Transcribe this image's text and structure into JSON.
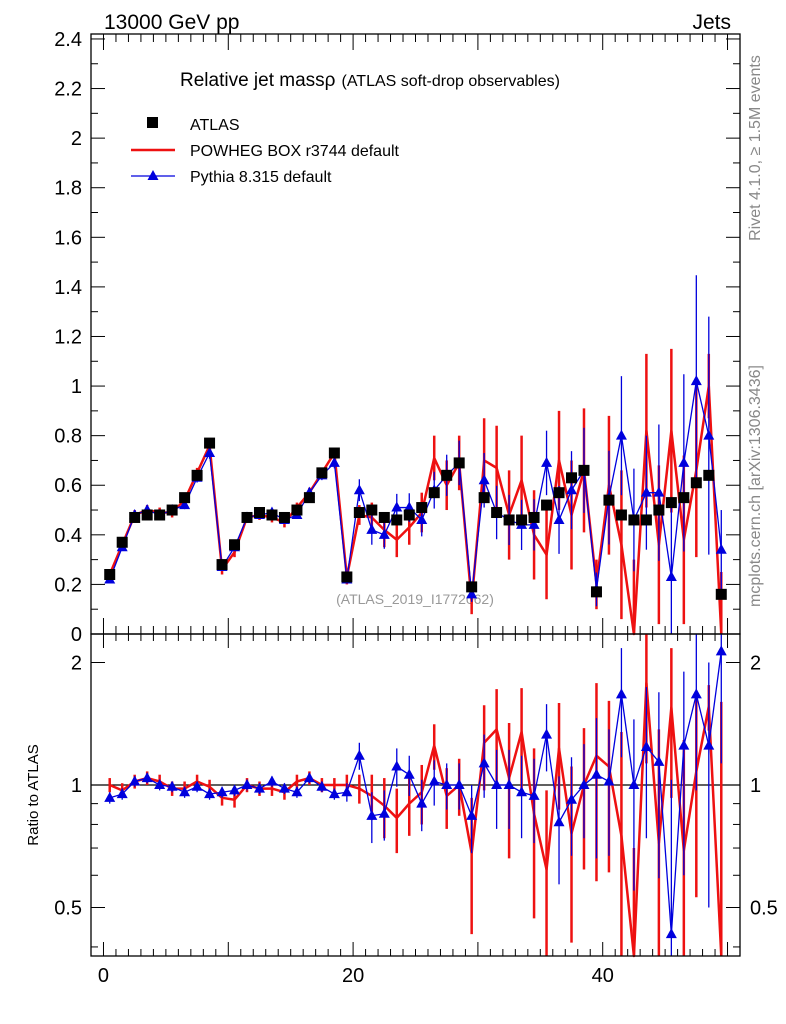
{
  "header": {
    "left": "13000 GeV pp",
    "right": "Jets"
  },
  "side": {
    "rivet": "Rivet 4.1.0, ≥ 1.5M events",
    "source": "mcplots.cern.ch [arXiv:1306.3436]"
  },
  "colors": {
    "data": "#000000",
    "powheg": "#ee1111",
    "pythia": "#0000dd",
    "watermark": "#999999"
  },
  "chart_data": [
    {
      "type": "line",
      "title": "Relative jet massρ",
      "subtitle": "(ATLAS soft-drop observables)",
      "watermark": "(ATLAS_2019_I1772062)",
      "xlabel": "",
      "ylabel": "",
      "xlim": [
        -1,
        51
      ],
      "ylim": [
        0,
        2.42
      ],
      "yticks": [
        "0",
        "0.2",
        "0.4",
        "0.6",
        "0.8",
        "1",
        "1.2",
        "1.4",
        "1.6",
        "1.8",
        "2",
        "2.2",
        "2.4"
      ],
      "legend_position": "top-left",
      "x": [
        0.5,
        1.5,
        2.5,
        3.5,
        4.5,
        5.5,
        6.5,
        7.5,
        8.5,
        9.5,
        10.5,
        11.5,
        12.5,
        13.5,
        14.5,
        15.5,
        16.5,
        17.5,
        18.5,
        19.5,
        20.5,
        21.5,
        22.5,
        23.5,
        24.5,
        25.5,
        26.5,
        27.5,
        28.5,
        29.5,
        30.5,
        31.5,
        32.5,
        33.5,
        34.5,
        35.5,
        36.5,
        37.5,
        38.5,
        39.5,
        40.5,
        41.5,
        42.5,
        43.5,
        44.5,
        45.5,
        46.5,
        47.5,
        48.5,
        49.5
      ],
      "series": [
        {
          "name": "ATLAS",
          "style": "markers",
          "values": [
            0.24,
            0.37,
            0.47,
            0.48,
            0.48,
            0.5,
            0.55,
            0.64,
            0.77,
            0.28,
            0.36,
            0.47,
            0.49,
            0.48,
            0.47,
            0.5,
            0.55,
            0.65,
            0.73,
            0.23,
            0.49,
            0.5,
            0.47,
            0.46,
            0.48,
            0.51,
            0.57,
            0.64,
            0.69,
            0.19,
            0.55,
            0.49,
            0.46,
            0.46,
            0.47,
            0.52,
            0.57,
            0.63,
            0.66,
            0.17,
            0.54,
            0.48,
            0.46,
            0.46,
            0.5,
            0.53,
            0.55,
            0.61,
            0.64,
            0.16
          ],
          "errors": [
            0.01,
            0.01,
            0.01,
            0.01,
            0.01,
            0.01,
            0.01,
            0.01,
            0.01,
            0.01,
            0.01,
            0.01,
            0.01,
            0.01,
            0.01,
            0.01,
            0.01,
            0.01,
            0.01,
            0.01,
            0.01,
            0.01,
            0.01,
            0.01,
            0.01,
            0.01,
            0.01,
            0.01,
            0.01,
            0.01,
            0.01,
            0.01,
            0.01,
            0.01,
            0.01,
            0.01,
            0.01,
            0.01,
            0.01,
            0.01,
            0.01,
            0.01,
            0.01,
            0.01,
            0.01,
            0.01,
            0.01,
            0.01,
            0.01,
            0.01
          ]
        },
        {
          "name": "POWHEG BOX r3744 default",
          "style": "line",
          "values": [
            0.24,
            0.36,
            0.48,
            0.5,
            0.49,
            0.49,
            0.54,
            0.65,
            0.76,
            0.26,
            0.33,
            0.47,
            0.48,
            0.47,
            0.45,
            0.51,
            0.57,
            0.65,
            0.73,
            0.23,
            0.48,
            0.47,
            0.42,
            0.38,
            0.43,
            0.49,
            0.71,
            0.6,
            0.69,
            0.13,
            0.7,
            0.67,
            0.48,
            0.62,
            0.4,
            0.32,
            0.7,
            0.48,
            0.66,
            0.2,
            0.6,
            0.36,
            0.0,
            0.82,
            0.36,
            0.82,
            0.38,
            0.66,
            1.0,
            0.0
          ],
          "errors": [
            0.02,
            0.02,
            0.02,
            0.02,
            0.02,
            0.02,
            0.02,
            0.02,
            0.02,
            0.02,
            0.02,
            0.02,
            0.02,
            0.02,
            0.02,
            0.02,
            0.02,
            0.02,
            0.02,
            0.03,
            0.04,
            0.06,
            0.07,
            0.07,
            0.07,
            0.08,
            0.09,
            0.1,
            0.11,
            0.05,
            0.17,
            0.17,
            0.18,
            0.18,
            0.18,
            0.18,
            0.2,
            0.22,
            0.25,
            0.1,
            0.28,
            0.3,
            0.3,
            0.31,
            0.32,
            0.33,
            0.34,
            0.35,
            0.13,
            0.25
          ]
        },
        {
          "name": "Pythia 8.315 default",
          "style": "line-markers",
          "values": [
            0.22,
            0.35,
            0.48,
            0.5,
            0.48,
            0.5,
            0.52,
            0.63,
            0.73,
            0.27,
            0.35,
            0.47,
            0.48,
            0.49,
            0.46,
            0.48,
            0.57,
            0.64,
            0.69,
            0.22,
            0.58,
            0.42,
            0.4,
            0.51,
            0.51,
            0.46,
            0.58,
            0.64,
            0.69,
            0.16,
            0.62,
            0.49,
            0.46,
            0.44,
            0.44,
            0.69,
            0.46,
            0.58,
            0.66,
            0.18,
            0.55,
            0.8,
            0.46,
            0.57,
            0.57,
            0.23,
            0.69,
            1.02,
            0.8,
            0.34
          ]
        }
      ]
    },
    {
      "type": "line",
      "title": "",
      "xlabel": "",
      "ylabel": "Ratio to ATLAS",
      "xlim": [
        -1,
        51
      ],
      "ylim": [
        0.38,
        2.35
      ],
      "ylog": true,
      "xticks": [
        "0",
        "20",
        "40"
      ],
      "yticks": [
        "0.5",
        "1",
        "2"
      ],
      "reference": 1,
      "series": [
        {
          "name": "POWHEG BOX r3744 default",
          "values": [
            1.0,
            0.97,
            1.02,
            1.04,
            1.02,
            0.98,
            0.98,
            1.02,
            0.99,
            0.93,
            0.92,
            1.0,
            0.98,
            0.98,
            0.96,
            1.02,
            1.04,
            1.0,
            1.0,
            1.0,
            0.98,
            0.94,
            0.89,
            0.83,
            0.9,
            0.96,
            1.25,
            0.94,
            1.0,
            0.68,
            1.27,
            1.37,
            1.04,
            1.35,
            0.85,
            0.62,
            1.23,
            0.76,
            1.0,
            1.18,
            1.11,
            0.75,
            0.1,
            1.78,
            0.72,
            1.55,
            0.69,
            1.08,
            1.56,
            0.1
          ],
          "errors": [
            0.04,
            0.04,
            0.04,
            0.04,
            0.04,
            0.04,
            0.04,
            0.04,
            0.04,
            0.04,
            0.04,
            0.04,
            0.04,
            0.04,
            0.04,
            0.04,
            0.04,
            0.04,
            0.04,
            0.06,
            0.08,
            0.12,
            0.15,
            0.15,
            0.15,
            0.16,
            0.16,
            0.16,
            0.16,
            0.25,
            0.3,
            0.35,
            0.38,
            0.38,
            0.38,
            0.35,
            0.36,
            0.35,
            0.38,
            0.6,
            0.5,
            0.6,
            0.6,
            0.65,
            0.65,
            0.62,
            0.6,
            0.55,
            0.2,
            1.5
          ]
        },
        {
          "name": "Pythia 8.315 default",
          "values": [
            0.93,
            0.95,
            1.02,
            1.04,
            1.0,
            0.99,
            0.96,
            0.99,
            0.95,
            0.96,
            0.97,
            1.0,
            0.98,
            1.02,
            0.98,
            0.96,
            1.04,
            0.99,
            0.95,
            0.96,
            1.18,
            0.84,
            0.85,
            1.11,
            1.06,
            0.9,
            1.02,
            1.0,
            1.0,
            0.84,
            1.13,
            1.0,
            1.0,
            0.96,
            0.94,
            1.33,
            0.81,
            0.92,
            1.0,
            1.06,
            1.02,
            1.67,
            1.0,
            1.24,
            1.14,
            0.43,
            1.25,
            1.67,
            1.25,
            2.13
          ],
          "errors": [
            0.03,
            0.03,
            0.03,
            0.03,
            0.03,
            0.03,
            0.03,
            0.03,
            0.03,
            0.03,
            0.03,
            0.03,
            0.03,
            0.03,
            0.03,
            0.03,
            0.03,
            0.03,
            0.03,
            0.05,
            0.09,
            0.12,
            0.12,
            0.12,
            0.12,
            0.13,
            0.13,
            0.13,
            0.13,
            0.16,
            0.2,
            0.22,
            0.22,
            0.22,
            0.22,
            0.25,
            0.24,
            0.25,
            0.26,
            0.4,
            0.35,
            0.5,
            0.45,
            0.5,
            0.55,
            0.6,
            0.65,
            0.7,
            0.75,
            1.0
          ]
        }
      ]
    }
  ]
}
